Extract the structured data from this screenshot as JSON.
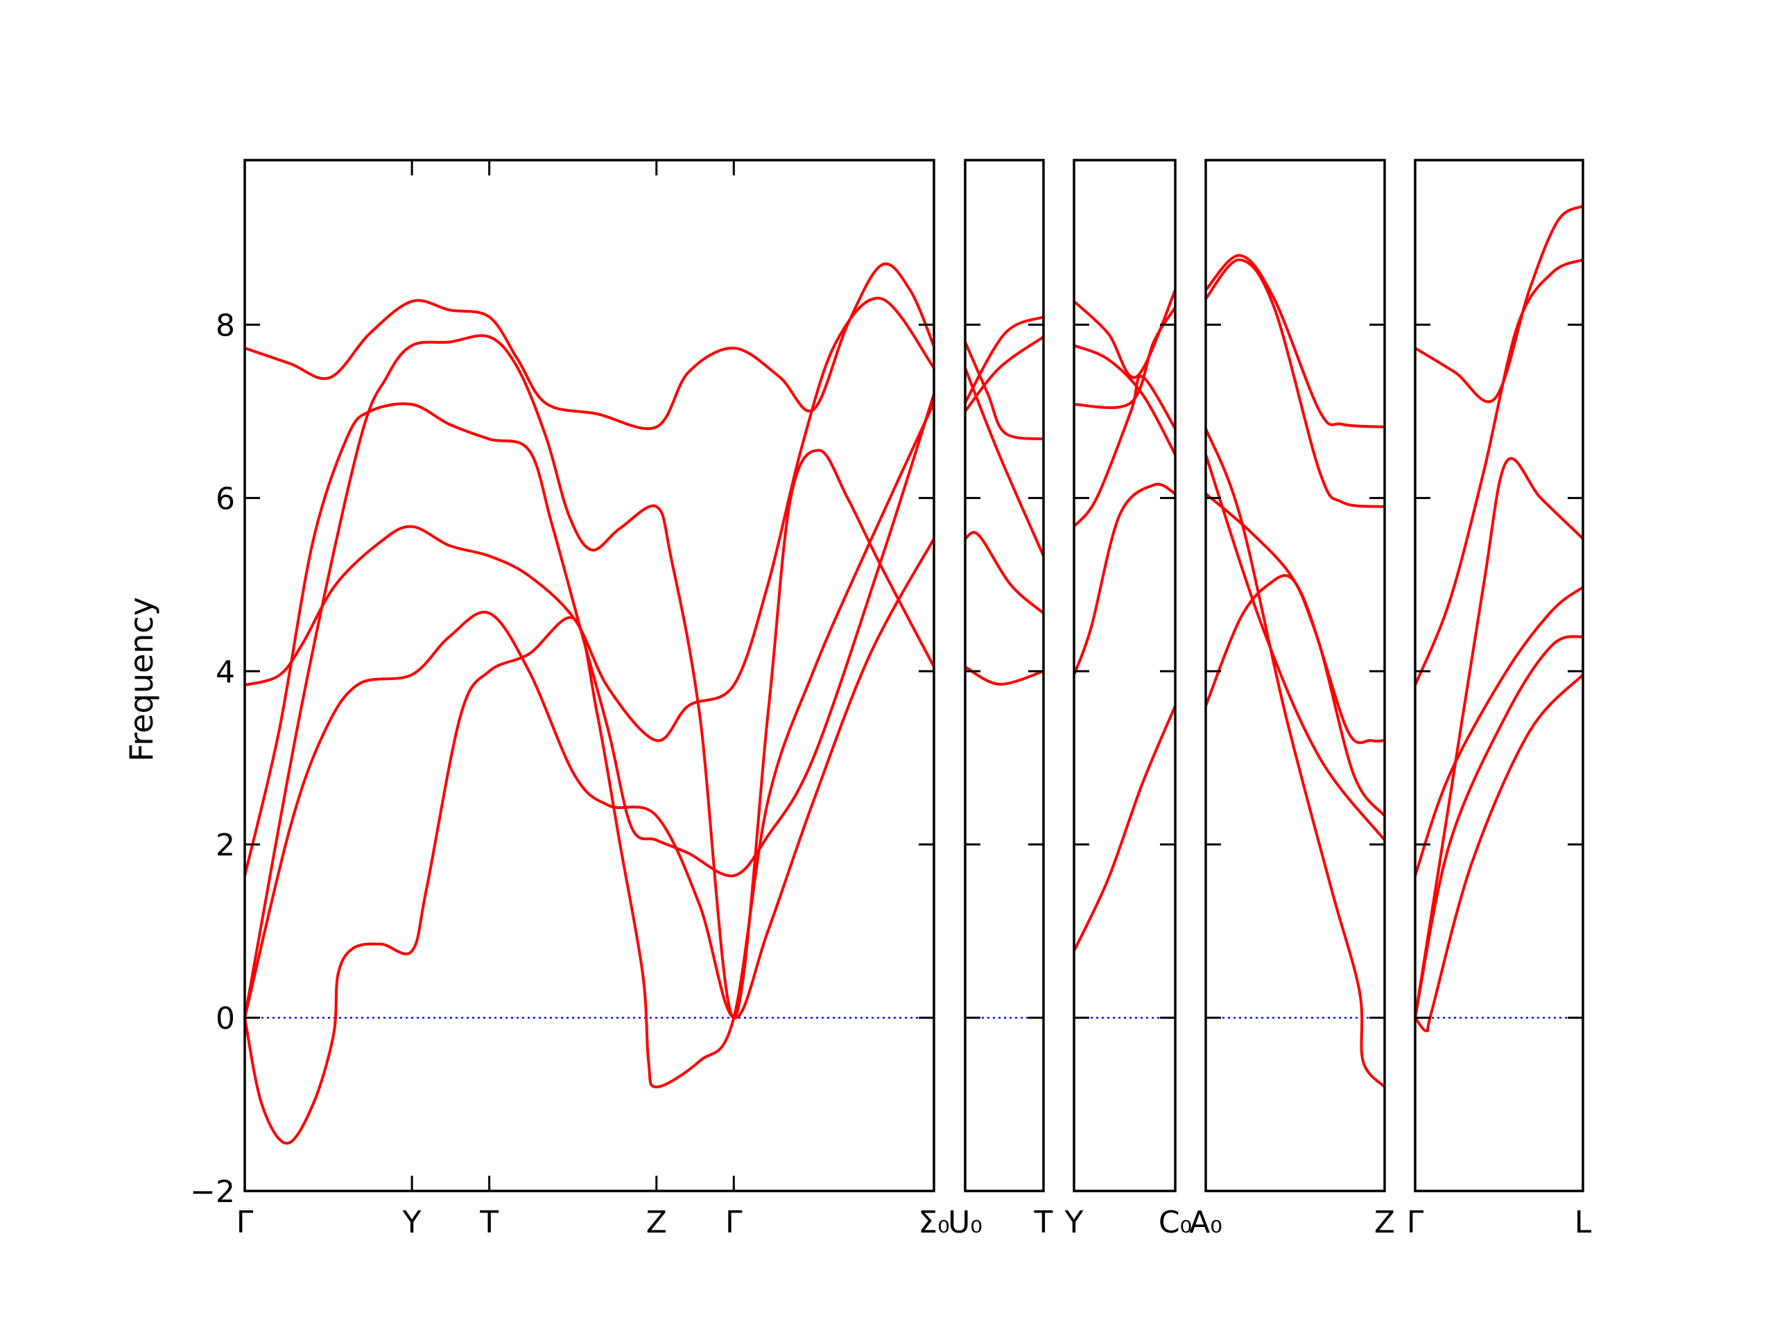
{
  "chart_data": {
    "type": "line",
    "title": "",
    "xlabel": "",
    "ylabel": "Frequency",
    "ylim": [
      -2,
      9.9
    ],
    "yticks": [
      -2,
      0,
      2,
      4,
      6,
      8
    ],
    "ytick_labels": [
      "−2",
      "0",
      "2",
      "4",
      "6",
      "8"
    ],
    "grid": false,
    "line_color": "#ff0000",
    "zero_line_color": "#0000ff",
    "panels": [
      {
        "xmax": 6.06,
        "ticks": [
          {
            "x": 0,
            "label": "Γ"
          },
          {
            "x": 1.47,
            "label": "Y"
          },
          {
            "x": 2.15,
            "label": "T"
          },
          {
            "x": 3.62,
            "label": "Z"
          },
          {
            "x": 4.3,
            "label": "Γ"
          },
          {
            "x": 6.06,
            "label": "Σ₀"
          }
        ],
        "bands": [
          [
            [
              0,
              7.73
            ],
            [
              0.4,
              7.55
            ],
            [
              0.75,
              7.39
            ],
            [
              1.1,
              7.9
            ],
            [
              1.47,
              8.27
            ],
            [
              1.8,
              8.17
            ],
            [
              2.15,
              8.09
            ],
            [
              2.4,
              7.6
            ],
            [
              2.65,
              7.09
            ],
            [
              3.1,
              6.97
            ],
            [
              3.62,
              6.82
            ],
            [
              3.9,
              7.45
            ],
            [
              4.3,
              7.73
            ],
            [
              4.7,
              7.4
            ],
            [
              5.0,
              7.02
            ],
            [
              5.3,
              8.0
            ],
            [
              5.6,
              8.69
            ],
            [
              5.85,
              8.4
            ],
            [
              6.06,
              7.75
            ]
          ],
          [
            [
              0,
              0
            ],
            [
              0.5,
              3.6
            ],
            [
              1.0,
              6.6
            ],
            [
              1.25,
              7.4
            ],
            [
              1.47,
              7.76
            ],
            [
              1.8,
              7.8
            ],
            [
              2.15,
              7.86
            ],
            [
              2.4,
              7.5
            ],
            [
              2.65,
              6.7
            ],
            [
              2.85,
              5.8
            ],
            [
              3.05,
              5.4
            ],
            [
              3.3,
              5.65
            ],
            [
              3.62,
              5.9
            ],
            [
              3.75,
              5.3
            ],
            [
              4.0,
              3.5
            ],
            [
              4.3,
              0
            ],
            [
              4.6,
              3.5
            ],
            [
              4.8,
              6.0
            ],
            [
              5.05,
              6.55
            ],
            [
              5.3,
              6.0
            ],
            [
              5.6,
              5.2
            ],
            [
              6.06,
              4.05
            ]
          ],
          [
            [
              0,
              1.64
            ],
            [
              0.3,
              3.3
            ],
            [
              0.6,
              5.5
            ],
            [
              0.9,
              6.7
            ],
            [
              1.1,
              7.0
            ],
            [
              1.47,
              7.08
            ],
            [
              1.8,
              6.85
            ],
            [
              2.15,
              6.68
            ],
            [
              2.5,
              6.55
            ],
            [
              2.7,
              5.7
            ],
            [
              2.95,
              4.5
            ],
            [
              3.2,
              3.3
            ],
            [
              3.4,
              2.2
            ],
            [
              3.62,
              2.05
            ],
            [
              3.9,
              1.9
            ],
            [
              4.3,
              1.64
            ],
            [
              4.6,
              2.1
            ],
            [
              5.0,
              3.0
            ],
            [
              5.6,
              5.3
            ],
            [
              6.06,
              7.2
            ]
          ],
          [
            [
              0,
              3.84
            ],
            [
              0.3,
              3.95
            ],
            [
              0.5,
              4.3
            ],
            [
              0.8,
              5.0
            ],
            [
              1.2,
              5.5
            ],
            [
              1.47,
              5.67
            ],
            [
              1.8,
              5.45
            ],
            [
              2.15,
              5.33
            ],
            [
              2.5,
              5.1
            ],
            [
              2.9,
              4.6
            ],
            [
              3.2,
              3.8
            ],
            [
              3.62,
              3.2
            ],
            [
              3.9,
              3.6
            ],
            [
              4.3,
              3.84
            ],
            [
              4.6,
              5.0
            ],
            [
              4.9,
              6.6
            ],
            [
              5.2,
              7.8
            ],
            [
              5.6,
              8.3
            ],
            [
              6.06,
              7.5
            ]
          ],
          [
            [
              0,
              0
            ],
            [
              0.4,
              2.2
            ],
            [
              0.7,
              3.3
            ],
            [
              1.0,
              3.85
            ],
            [
              1.47,
              3.96
            ],
            [
              1.8,
              4.4
            ],
            [
              2.15,
              4.67
            ],
            [
              2.5,
              4.0
            ],
            [
              2.9,
              2.8
            ],
            [
              3.2,
              2.45
            ],
            [
              3.62,
              2.33
            ],
            [
              4.0,
              1.3
            ],
            [
              4.3,
              0
            ],
            [
              4.6,
              1.0
            ],
            [
              5.0,
              2.5
            ],
            [
              5.5,
              4.2
            ],
            [
              6.06,
              5.53
            ]
          ],
          [
            [
              0,
              0
            ],
            [
              0.15,
              -1.0
            ],
            [
              0.37,
              -1.45
            ],
            [
              0.6,
              -1.0
            ],
            [
              0.78,
              -0.2
            ],
            [
              0.82,
              0.5
            ],
            [
              0.95,
              0.8
            ],
            [
              1.2,
              0.85
            ],
            [
              1.47,
              0.77
            ],
            [
              1.6,
              1.5
            ],
            [
              1.9,
              3.5
            ],
            [
              2.15,
              4.0
            ],
            [
              2.5,
              4.2
            ],
            [
              2.9,
              4.6
            ],
            [
              3.1,
              3.5
            ],
            [
              3.3,
              2.0
            ],
            [
              3.5,
              0.5
            ],
            [
              3.55,
              -0.5
            ],
            [
              3.62,
              -0.8
            ],
            [
              4.0,
              -0.5
            ],
            [
              4.3,
              0
            ],
            [
              4.6,
              2.5
            ],
            [
              5.0,
              4.0
            ],
            [
              5.5,
              5.5
            ],
            [
              6.06,
              7.1
            ]
          ]
        ]
      },
      {
        "xmax": 0.69,
        "ticks": [
          {
            "x": 0,
            "label": "U₀"
          },
          {
            "x": 0.69,
            "label": "T"
          }
        ],
        "bands": [
          [
            [
              0,
              7.1
            ],
            [
              0.35,
              7.9
            ],
            [
              0.69,
              8.09
            ]
          ],
          [
            [
              0,
              7.0
            ],
            [
              0.3,
              7.5
            ],
            [
              0.69,
              7.86
            ]
          ],
          [
            [
              0,
              7.8
            ],
            [
              0.2,
              7.2
            ],
            [
              0.35,
              6.75
            ],
            [
              0.69,
              6.68
            ]
          ],
          [
            [
              0,
              7.5
            ],
            [
              0.3,
              6.5
            ],
            [
              0.69,
              5.33
            ]
          ],
          [
            [
              0,
              5.53
            ],
            [
              0.12,
              5.57
            ],
            [
              0.4,
              5.0
            ],
            [
              0.69,
              4.67
            ]
          ],
          [
            [
              0,
              4.05
            ],
            [
              0.3,
              3.85
            ],
            [
              0.69,
              4.0
            ]
          ]
        ]
      },
      {
        "xmax": 0.89,
        "ticks": [
          {
            "x": 0,
            "label": "Y"
          },
          {
            "x": 0.89,
            "label": "C₀"
          }
        ],
        "bands": [
          [
            [
              0,
              8.27
            ],
            [
              0.3,
              7.9
            ],
            [
              0.55,
              7.4
            ],
            [
              0.89,
              8.4
            ]
          ],
          [
            [
              0,
              7.76
            ],
            [
              0.3,
              7.6
            ],
            [
              0.6,
              7.2
            ],
            [
              0.89,
              6.5
            ]
          ],
          [
            [
              0,
              7.08
            ],
            [
              0.5,
              7.1
            ],
            [
              0.7,
              7.8
            ],
            [
              0.89,
              8.2
            ]
          ],
          [
            [
              0,
              5.67
            ],
            [
              0.2,
              6.0
            ],
            [
              0.5,
              7.0
            ],
            [
              0.6,
              7.4
            ],
            [
              0.89,
              6.8
            ]
          ],
          [
            [
              0,
              3.96
            ],
            [
              0.15,
              4.5
            ],
            [
              0.4,
              5.8
            ],
            [
              0.7,
              6.15
            ],
            [
              0.89,
              6.05
            ]
          ],
          [
            [
              0,
              0.77
            ],
            [
              0.3,
              1.6
            ],
            [
              0.6,
              2.7
            ],
            [
              0.89,
              3.6
            ]
          ]
        ]
      },
      {
        "xmax": 1.57,
        "ticks": [
          {
            "x": 0,
            "label": "A₀"
          },
          {
            "x": 1.57,
            "label": "Z"
          }
        ],
        "bands": [
          [
            [
              0,
              8.4
            ],
            [
              0.3,
              8.8
            ],
            [
              0.6,
              8.3
            ],
            [
              1.0,
              7.0
            ],
            [
              1.2,
              6.85
            ],
            [
              1.57,
              6.82
            ]
          ],
          [
            [
              0,
              8.3
            ],
            [
              0.3,
              8.75
            ],
            [
              0.6,
              8.2
            ],
            [
              1.0,
              6.3
            ],
            [
              1.2,
              5.95
            ],
            [
              1.57,
              5.9
            ]
          ],
          [
            [
              0,
              6.8
            ],
            [
              0.3,
              5.8
            ],
            [
              0.7,
              3.5
            ],
            [
              1.1,
              1.5
            ],
            [
              1.35,
              0.3
            ],
            [
              1.38,
              -0.5
            ],
            [
              1.57,
              -0.8
            ]
          ],
          [
            [
              0,
              6.5
            ],
            [
              0.5,
              4.5
            ],
            [
              1.0,
              3.0
            ],
            [
              1.57,
              2.05
            ]
          ],
          [
            [
              0,
              6.05
            ],
            [
              0.4,
              5.6
            ],
            [
              0.75,
              5.1
            ],
            [
              0.95,
              4.5
            ],
            [
              1.25,
              3.3
            ],
            [
              1.45,
              3.2
            ],
            [
              1.57,
              3.2
            ]
          ],
          [
            [
              0,
              3.6
            ],
            [
              0.3,
              4.6
            ],
            [
              0.55,
              5.0
            ],
            [
              0.77,
              5.05
            ],
            [
              1.0,
              4.3
            ],
            [
              1.3,
              2.8
            ],
            [
              1.57,
              2.33
            ]
          ]
        ]
      },
      {
        "xmax": 1.47,
        "ticks": [
          {
            "x": 0,
            "label": "Γ"
          },
          {
            "x": 1.47,
            "label": "L"
          }
        ],
        "bands": [
          [
            [
              0,
              7.73
            ],
            [
              0.35,
              7.45
            ],
            [
              0.7,
              7.15
            ],
            [
              1.0,
              8.4
            ],
            [
              1.25,
              9.2
            ],
            [
              1.47,
              9.37
            ]
          ],
          [
            [
              0,
              3.84
            ],
            [
              0.3,
              4.8
            ],
            [
              0.6,
              6.3
            ],
            [
              0.9,
              8.0
            ],
            [
              1.2,
              8.6
            ],
            [
              1.47,
              8.75
            ]
          ],
          [
            [
              0,
              0
            ],
            [
              0.3,
              2.5
            ],
            [
              0.6,
              5.0
            ],
            [
              0.8,
              6.42
            ],
            [
              1.1,
              6.0
            ],
            [
              1.47,
              5.53
            ]
          ],
          [
            [
              0,
              1.64
            ],
            [
              0.3,
              2.8
            ],
            [
              0.8,
              4.0
            ],
            [
              1.2,
              4.7
            ],
            [
              1.47,
              4.97
            ]
          ],
          [
            [
              0,
              0
            ],
            [
              0.3,
              2.0
            ],
            [
              0.8,
              3.5
            ],
            [
              1.2,
              4.3
            ],
            [
              1.47,
              4.4
            ]
          ],
          [
            [
              0,
              0
            ],
            [
              0.1,
              -0.15
            ],
            [
              0.15,
              0.1
            ],
            [
              0.5,
              1.8
            ],
            [
              1.0,
              3.3
            ],
            [
              1.47,
              3.96
            ]
          ]
        ]
      }
    ]
  }
}
